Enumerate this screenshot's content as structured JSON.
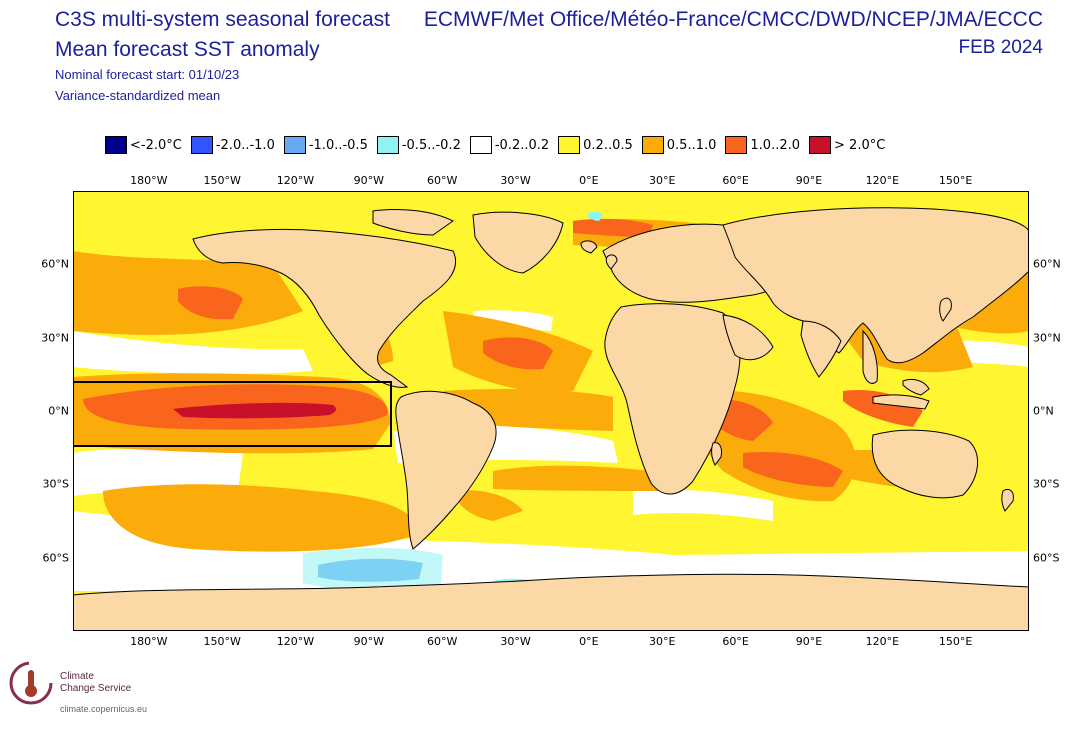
{
  "header": {
    "title_line1": "C3S multi-system seasonal forecast",
    "title_line2": "Mean forecast SST anomaly",
    "subtitle_line1": "Nominal forecast start: 01/10/23",
    "subtitle_line2": "Variance-standardized mean",
    "centres": "ECMWF/Met Office/Météo-France/CMCC/DWD/NCEP/JMA/ECCC",
    "valid_month": "FEB 2024"
  },
  "legend": [
    {
      "label": "<-2.0°C",
      "color": "#00008b"
    },
    {
      "label": "-2.0..-1.0",
      "color": "#3355ff"
    },
    {
      "label": "-1.0..-0.5",
      "color": "#66aaf5"
    },
    {
      "label": "-0.5..-0.2",
      "color": "#8ff3f3"
    },
    {
      "label": "-0.2..0.2",
      "color": "#ffffff"
    },
    {
      "label": "0.2..0.5",
      "color": "#fff530"
    },
    {
      "label": "0.5..1.0",
      "color": "#fbac0b"
    },
    {
      "label": "1.0..2.0",
      "color": "#f9651c"
    },
    {
      "label": "> 2.0°C",
      "color": "#c9102a"
    }
  ],
  "axes": {
    "lon_ticks": [
      "180°W",
      "150°W",
      "120°W",
      "90°W",
      "60°W",
      "30°W",
      "0°E",
      "30°E",
      "60°E",
      "90°E",
      "120°E",
      "150°E"
    ],
    "lon_values": [
      -180,
      -150,
      -120,
      -90,
      -60,
      -30,
      0,
      30,
      60,
      90,
      120,
      150
    ],
    "lat_ticks": [
      "60°N",
      "30°N",
      "0°N",
      "30°S",
      "60°S"
    ],
    "lat_values": [
      60,
      30,
      0,
      -30,
      -60
    ],
    "lon_range": [
      -211,
      180
    ],
    "lat_range": [
      -90,
      90
    ]
  },
  "niño_box": {
    "lon": [
      -210,
      -80
    ],
    "lat": [
      -15,
      10
    ]
  },
  "colors": {
    "land": "#fbd8a6",
    "coast": "#000000",
    "title": "#1b1f9a"
  },
  "logo": {
    "line1": "Climate",
    "line2": "Change Service",
    "url": "climate.copernicus.eu"
  }
}
